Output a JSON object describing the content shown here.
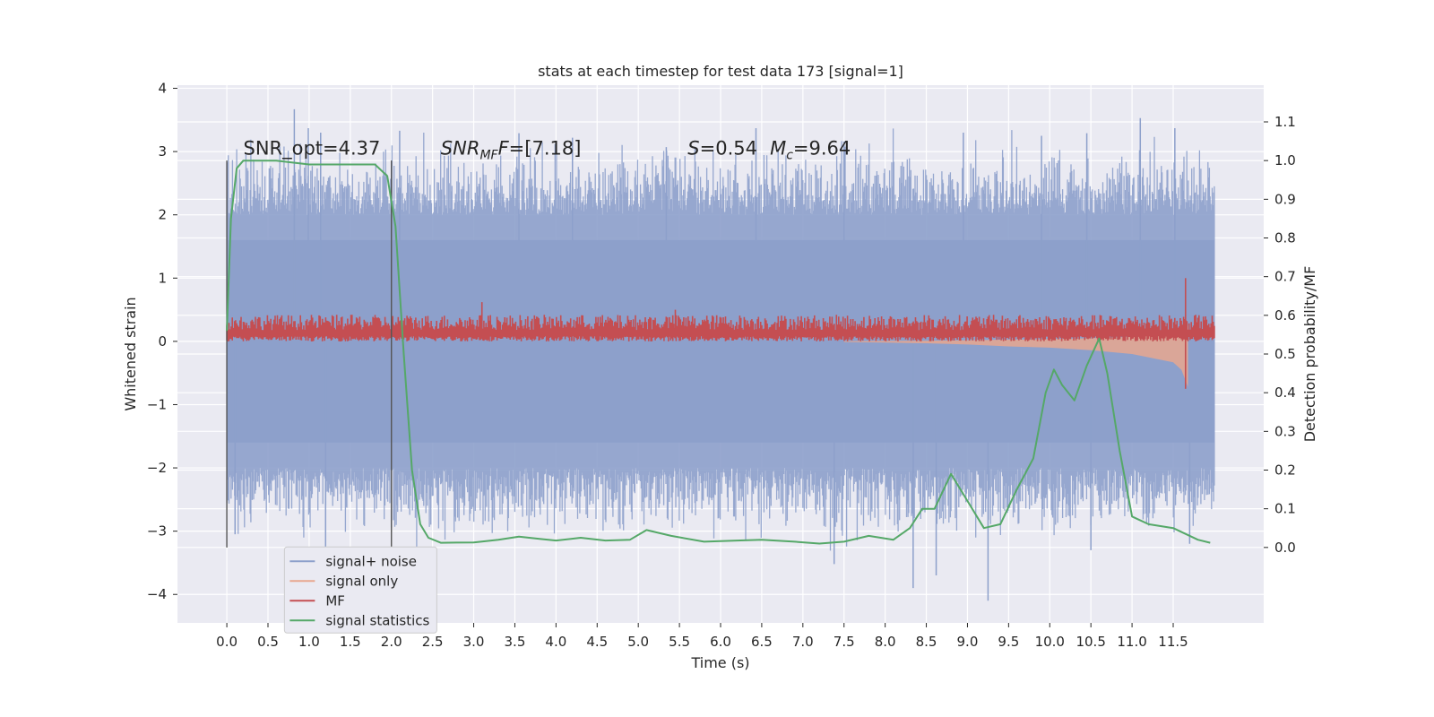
{
  "chart_data": {
    "type": "line",
    "title": "stats at each timestep for test data 173 [signal=1]",
    "xlabel": "Time (s)",
    "ylabel": "Whitened strain",
    "y2label": "Detection probability/MF",
    "xlim": [
      -0.6,
      12.6
    ],
    "ylim": [
      -4.45,
      4.05
    ],
    "y2lim": [
      -0.195,
      1.195
    ],
    "grid": true,
    "legend_position": "lower-left",
    "x_ticks": [
      "0.0",
      "0.5",
      "1.0",
      "1.5",
      "2.0",
      "2.5",
      "3.0",
      "3.5",
      "4.0",
      "4.5",
      "5.0",
      "5.5",
      "6.0",
      "6.5",
      "7.0",
      "7.5",
      "8.0",
      "8.5",
      "9.0",
      "9.5",
      "10.0",
      "10.5",
      "11.0",
      "11.5"
    ],
    "y_ticks": [
      "4",
      "3",
      "2",
      "1",
      "0",
      "−1",
      "−2",
      "−3",
      "−4"
    ],
    "y2_ticks": [
      "1.1",
      "1.0",
      "0.9",
      "0.8",
      "0.7",
      "0.6",
      "0.5",
      "0.4",
      "0.3",
      "0.2",
      "0.1",
      "0.0"
    ],
    "annotations": {
      "snr_opt": "SNR_opt=4.37",
      "snr_mf_sym": "SNR",
      "snr_mf_sub": "MF",
      "snr_mf_val": "=[7.18]",
      "s_sym": "S",
      "s_val": "=0.54",
      "mc_sym": "M",
      "mc_sub": "c",
      "mc_val": "=9.64"
    },
    "vertical_markers": [
      0.0,
      2.0
    ],
    "series": [
      {
        "name": "signal+ noise",
        "color": "#8da0cb",
        "axis": "left",
        "x_range": [
          0.0,
          12.0
        ],
        "envelope_typical": [
          -2.0,
          2.0
        ],
        "envelope_extreme": [
          -4.1,
          3.67
        ],
        "spikes": [
          {
            "x": 0.82,
            "y": 3.67
          },
          {
            "x": 0.99,
            "y": 3.37
          },
          {
            "x": 1.14,
            "y": 3.3
          },
          {
            "x": 2.1,
            "y": 3.33
          },
          {
            "x": 3.55,
            "y": 3.29
          },
          {
            "x": 4.2,
            "y": 3.22
          },
          {
            "x": 5.34,
            "y": 3.07
          },
          {
            "x": 6.43,
            "y": 3.37
          },
          {
            "x": 7.5,
            "y": 3.16
          },
          {
            "x": 8.95,
            "y": 3.3
          },
          {
            "x": 9.9,
            "y": 3.25
          },
          {
            "x": 10.45,
            "y": 3.29
          },
          {
            "x": 11.1,
            "y": 3.53
          },
          {
            "x": 11.52,
            "y": 3.37
          },
          {
            "x": 7.38,
            "y": -3.52
          },
          {
            "x": 8.34,
            "y": -3.9
          },
          {
            "x": 8.62,
            "y": -3.7
          },
          {
            "x": 9.25,
            "y": -4.1
          },
          {
            "x": 1.2,
            "y": -3.5
          },
          {
            "x": 0.1,
            "y": -3.05
          },
          {
            "x": 10.5,
            "y": -3.3
          },
          {
            "x": 11.7,
            "y": -3.2
          }
        ]
      },
      {
        "name": "signal only",
        "color": "#e8a78f",
        "axis": "left",
        "x": [
          7.5,
          8.0,
          8.5,
          9.0,
          9.5,
          10.0,
          10.5,
          11.0,
          11.5,
          11.6,
          11.68
        ],
        "amplitude": [
          0.01,
          0.02,
          0.03,
          0.05,
          0.08,
          0.1,
          0.14,
          0.2,
          0.33,
          0.45,
          0.72
        ]
      },
      {
        "name": "MF",
        "color": "#c44e52",
        "axis": "left",
        "x_range": [
          0.0,
          12.0
        ],
        "band": [
          0.0,
          0.42
        ],
        "spikes": [
          {
            "x": 11.65,
            "y": 1.0
          },
          {
            "x": 11.65,
            "y": -0.75
          },
          {
            "x": 3.1,
            "y": 0.62
          },
          {
            "x": 5.45,
            "y": 0.5
          }
        ]
      },
      {
        "name": "signal statistics",
        "color": "#55a868",
        "axis": "right",
        "x": [
          0.0,
          0.05,
          0.12,
          0.2,
          0.35,
          0.6,
          1.0,
          1.5,
          1.8,
          1.95,
          2.05,
          2.15,
          2.25,
          2.35,
          2.45,
          2.6,
          3.0,
          3.3,
          3.55,
          3.8,
          4.0,
          4.3,
          4.6,
          4.9,
          5.1,
          5.4,
          5.8,
          6.2,
          6.5,
          6.9,
          7.2,
          7.5,
          7.8,
          8.1,
          8.3,
          8.45,
          8.6,
          8.8,
          9.0,
          9.2,
          9.4,
          9.6,
          9.8,
          9.95,
          10.05,
          10.15,
          10.3,
          10.45,
          10.6,
          10.7,
          10.85,
          11.0,
          11.2,
          11.5,
          11.8,
          11.95
        ],
        "y": [
          0.56,
          0.85,
          0.98,
          1.0,
          1.0,
          1.0,
          0.99,
          0.99,
          0.99,
          0.96,
          0.83,
          0.5,
          0.2,
          0.06,
          0.025,
          0.012,
          0.013,
          0.02,
          0.028,
          0.022,
          0.018,
          0.025,
          0.018,
          0.02,
          0.045,
          0.03,
          0.015,
          0.018,
          0.02,
          0.015,
          0.01,
          0.015,
          0.03,
          0.02,
          0.05,
          0.1,
          0.1,
          0.19,
          0.12,
          0.05,
          0.06,
          0.15,
          0.23,
          0.4,
          0.46,
          0.42,
          0.38,
          0.47,
          0.54,
          0.45,
          0.25,
          0.08,
          0.06,
          0.05,
          0.02,
          0.012
        ]
      }
    ]
  }
}
